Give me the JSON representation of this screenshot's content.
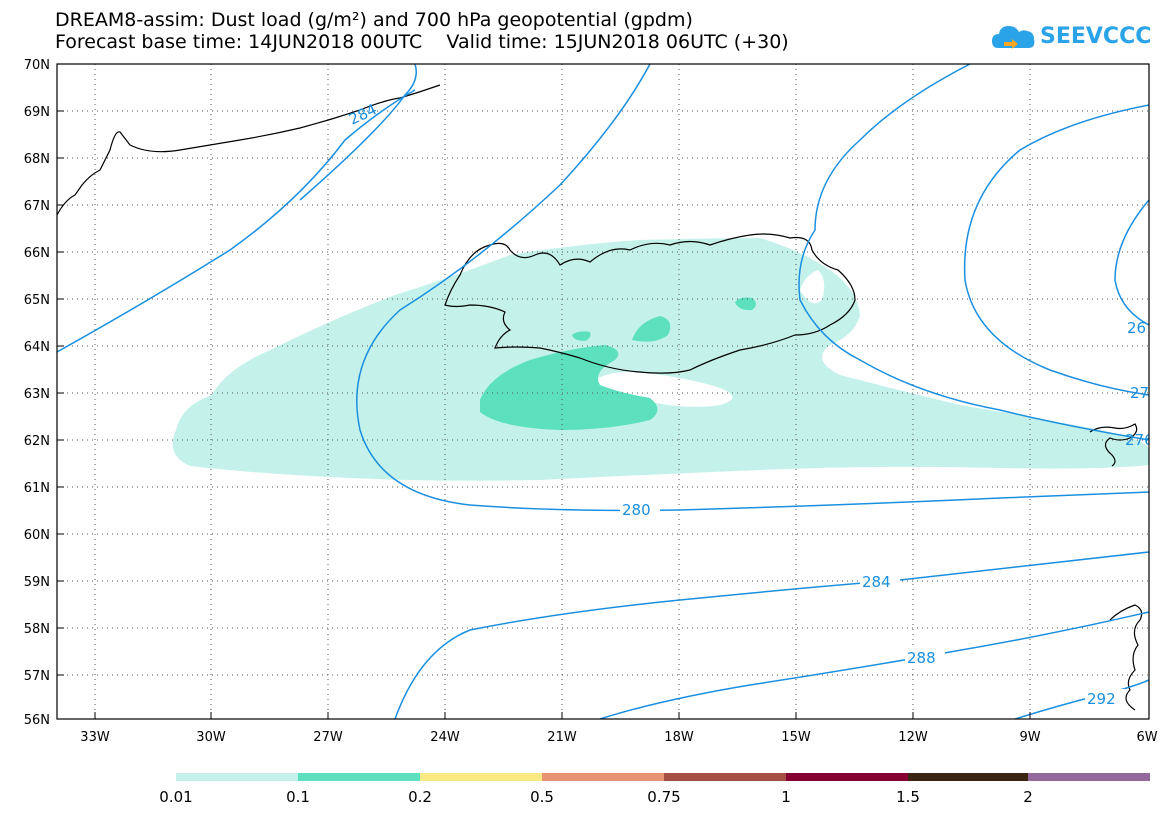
{
  "title": {
    "line1": "DREAM8-assim: Dust load (g/m²) and 700 hPa geopotential (gpdm)",
    "line2": "Forecast base time: 14JUN2018 00UTC    Valid time: 15JUN2018 06UTC (+30)"
  },
  "logo": {
    "text": "SEEVCCC",
    "icon": "cloud-logo-icon",
    "color": "#2aa3e8"
  },
  "map": {
    "lat_labels": [
      "70N",
      "69N",
      "68N",
      "67N",
      "66N",
      "65N",
      "64N",
      "63N",
      "62N",
      "61N",
      "60N",
      "59N",
      "58N",
      "57N",
      "56N"
    ],
    "lon_labels": [
      "33W",
      "30W",
      "27W",
      "24W",
      "21W",
      "18W",
      "15W",
      "12W",
      "9W",
      "6W"
    ],
    "contour_labels": [
      "280",
      "284",
      "288",
      "292",
      "284",
      "276",
      "27",
      "26"
    ],
    "contour_color": "#1a8fe0",
    "coast_color": "#000000"
  },
  "colorbar": {
    "colors": [
      "#c4f2ea",
      "#5ce0bd",
      "#f9ea83",
      "#e89473",
      "#a64d43",
      "#870032",
      "#3c2413",
      "#93699b"
    ],
    "labels": [
      "0.01",
      "0.1",
      "0.2",
      "0.5",
      "0.75",
      "1",
      "1.5",
      "2"
    ]
  }
}
